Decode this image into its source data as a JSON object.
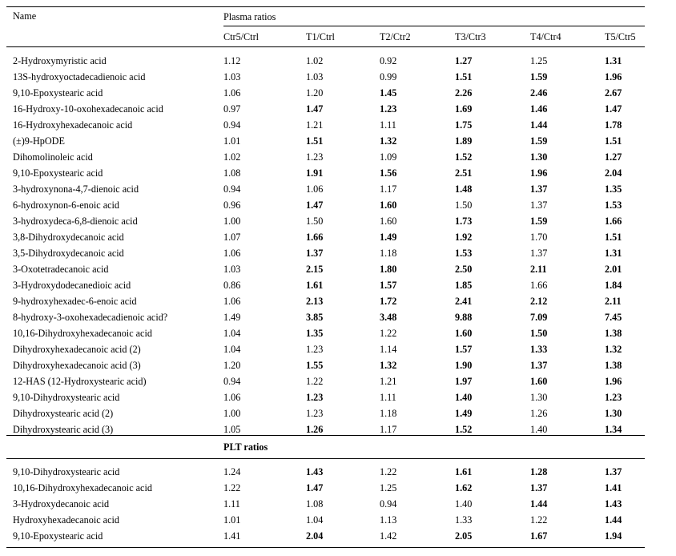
{
  "table": {
    "name_header": "Name",
    "plasma_section_label": "Plasma ratios",
    "columns": [
      "Ctr5/Ctrl",
      "T1/Ctrl",
      "T2/Ctr2",
      "T3/Ctr3",
      "T4/Ctr4",
      "T5/Ctr5"
    ],
    "plasma_rows": [
      {
        "name": "2-Hydroxymyristic acid",
        "values": [
          "1.12",
          "1.02",
          "0.92",
          "1.27",
          "1.25",
          "1.31"
        ],
        "bold": [
          false,
          false,
          false,
          true,
          false,
          true
        ]
      },
      {
        "name": "13S-hydroxyoctadecadienoic acid",
        "values": [
          "1.03",
          "1.03",
          "0.99",
          "1.51",
          "1.59",
          "1.96"
        ],
        "bold": [
          false,
          false,
          false,
          true,
          true,
          true
        ]
      },
      {
        "name": "9,10-Epoxystearic acid",
        "values": [
          "1.06",
          "1.20",
          "1.45",
          "2.26",
          "2.46",
          "2.67"
        ],
        "bold": [
          false,
          false,
          true,
          true,
          true,
          true
        ]
      },
      {
        "name": "16-Hydroxy-10-oxohexadecanoic acid",
        "values": [
          "0.97",
          "1.47",
          "1.23",
          "1.69",
          "1.46",
          "1.47"
        ],
        "bold": [
          false,
          true,
          true,
          true,
          true,
          true
        ]
      },
      {
        "name": "16-Hydroxyhexadecanoic acid",
        "values": [
          "0.94",
          "1.21",
          "1.11",
          "1.75",
          "1.44",
          "1.78"
        ],
        "bold": [
          false,
          false,
          false,
          true,
          true,
          true
        ]
      },
      {
        "name": "(±)9-HpODE",
        "values": [
          "1.01",
          "1.51",
          "1.32",
          "1.89",
          "1.59",
          "1.51"
        ],
        "bold": [
          false,
          true,
          true,
          true,
          true,
          true
        ]
      },
      {
        "name": "Dihomolinoleic acid",
        "values": [
          "1.02",
          "1.23",
          "1.09",
          "1.52",
          "1.30",
          "1.27"
        ],
        "bold": [
          false,
          false,
          false,
          true,
          true,
          true
        ]
      },
      {
        "name": "9,10-Epoxystearic acid",
        "values": [
          "1.08",
          "1.91",
          "1.56",
          "2.51",
          "1.96",
          "2.04"
        ],
        "bold": [
          false,
          true,
          true,
          true,
          true,
          true
        ]
      },
      {
        "name": "3-hydroxynona-4,7-dienoic acid",
        "values": [
          "0.94",
          "1.06",
          "1.17",
          "1.48",
          "1.37",
          "1.35"
        ],
        "bold": [
          false,
          false,
          false,
          true,
          true,
          true
        ]
      },
      {
        "name": "6-hydroxynon-6-enoic acid",
        "values": [
          "0.96",
          "1.47",
          "1.60",
          "1.50",
          "1.37",
          "1.53"
        ],
        "bold": [
          false,
          true,
          true,
          false,
          false,
          true
        ]
      },
      {
        "name": "3-hydroxydeca-6,8-dienoic acid",
        "values": [
          "1.00",
          "1.50",
          "1.60",
          "1.73",
          "1.59",
          "1.66"
        ],
        "bold": [
          false,
          false,
          false,
          true,
          true,
          true
        ]
      },
      {
        "name": "3,8-Dihydroxydecanoic acid",
        "values": [
          "1.07",
          "1.66",
          "1.49",
          "1.92",
          "1.70",
          "1.51"
        ],
        "bold": [
          false,
          true,
          true,
          true,
          false,
          true
        ]
      },
      {
        "name": "3,5-Dihydroxydecanoic acid",
        "values": [
          "1.06",
          "1.37",
          "1.18",
          "1.53",
          "1.37",
          "1.31"
        ],
        "bold": [
          false,
          true,
          false,
          true,
          false,
          true
        ]
      },
      {
        "name": "3-Oxotetradecanoic acid",
        "values": [
          "1.03",
          "2.15",
          "1.80",
          "2.50",
          "2.11",
          "2.01"
        ],
        "bold": [
          false,
          true,
          true,
          true,
          true,
          true
        ]
      },
      {
        "name": "3-Hydroxydodecanedioic acid",
        "values": [
          "0.86",
          "1.61",
          "1.57",
          "1.85",
          "1.66",
          "1.84"
        ],
        "bold": [
          false,
          true,
          true,
          true,
          false,
          true
        ]
      },
      {
        "name": "9-hydroxyhexadec-6-enoic acid",
        "values": [
          "1.06",
          "2.13",
          "1.72",
          "2.41",
          "2.12",
          "2.11"
        ],
        "bold": [
          false,
          true,
          true,
          true,
          true,
          true
        ]
      },
      {
        "name": "8-hydroxy-3-oxohexadecadienoic acid?",
        "values": [
          "1.49",
          "3.85",
          "3.48",
          "9.88",
          "7.09",
          "7.45"
        ],
        "bold": [
          false,
          true,
          true,
          true,
          true,
          true
        ]
      },
      {
        "name": "10,16-Dihydroxyhexadecanoic acid",
        "values": [
          "1.04",
          "1.35",
          "1.22",
          "1.60",
          "1.50",
          "1.38"
        ],
        "bold": [
          false,
          true,
          false,
          true,
          true,
          true
        ]
      },
      {
        "name": "Dihydroxyhexadecanoic acid (2)",
        "values": [
          "1.04",
          "1.23",
          "1.14",
          "1.57",
          "1.33",
          "1.32"
        ],
        "bold": [
          false,
          false,
          false,
          true,
          true,
          true
        ]
      },
      {
        "name": "Dihydroxyhexadecanoic acid (3)",
        "values": [
          "1.20",
          "1.55",
          "1.32",
          "1.90",
          "1.37",
          "1.38"
        ],
        "bold": [
          false,
          true,
          true,
          true,
          true,
          true
        ]
      },
      {
        "name": "12-HAS (12-Hydroxystearic acid)",
        "values": [
          "0.94",
          "1.22",
          "1.21",
          "1.97",
          "1.60",
          "1.96"
        ],
        "bold": [
          false,
          false,
          false,
          true,
          true,
          true
        ]
      },
      {
        "name": "9,10-Dihydroxystearic acid",
        "values": [
          "1.06",
          "1.23",
          "1.11",
          "1.40",
          "1.30",
          "1.23"
        ],
        "bold": [
          false,
          true,
          false,
          true,
          false,
          true
        ]
      },
      {
        "name": "Dihydroxystearic acid (2)",
        "values": [
          "1.00",
          "1.23",
          "1.18",
          "1.49",
          "1.26",
          "1.30"
        ],
        "bold": [
          false,
          false,
          false,
          true,
          false,
          true
        ]
      },
      {
        "name": "Dihydroxystearic acid (3)",
        "values": [
          "1.05",
          "1.26",
          "1.17",
          "1.52",
          "1.40",
          "1.34"
        ],
        "bold": [
          false,
          true,
          false,
          true,
          false,
          true
        ]
      }
    ],
    "plt_section_label": "PLT ratios",
    "plt_rows": [
      {
        "name": "9,10-Dihydroxystearic acid",
        "values": [
          "1.24",
          "1.43",
          "1.22",
          "1.61",
          "1.28",
          "1.37"
        ],
        "bold": [
          false,
          true,
          false,
          true,
          true,
          true
        ]
      },
      {
        "name": "10,16-Dihydroxyhexadecanoic acid",
        "values": [
          "1.22",
          "1.47",
          "1.25",
          "1.62",
          "1.37",
          "1.41"
        ],
        "bold": [
          false,
          true,
          false,
          true,
          true,
          true
        ]
      },
      {
        "name": "3-Hydroxydecanoic acid",
        "values": [
          "1.11",
          "1.08",
          "0.94",
          "1.40",
          "1.44",
          "1.43"
        ],
        "bold": [
          false,
          false,
          false,
          false,
          true,
          true
        ]
      },
      {
        "name": "Hydroxyhexadecanoic acid",
        "values": [
          "1.01",
          "1.04",
          "1.13",
          "1.33",
          "1.22",
          "1.44"
        ],
        "bold": [
          false,
          false,
          false,
          false,
          false,
          true
        ]
      },
      {
        "name": "9,10-Epoxystearic acid",
        "values": [
          "1.41",
          "2.04",
          "1.42",
          "2.05",
          "1.67",
          "1.94"
        ],
        "bold": [
          false,
          true,
          false,
          true,
          true,
          true
        ]
      }
    ]
  }
}
